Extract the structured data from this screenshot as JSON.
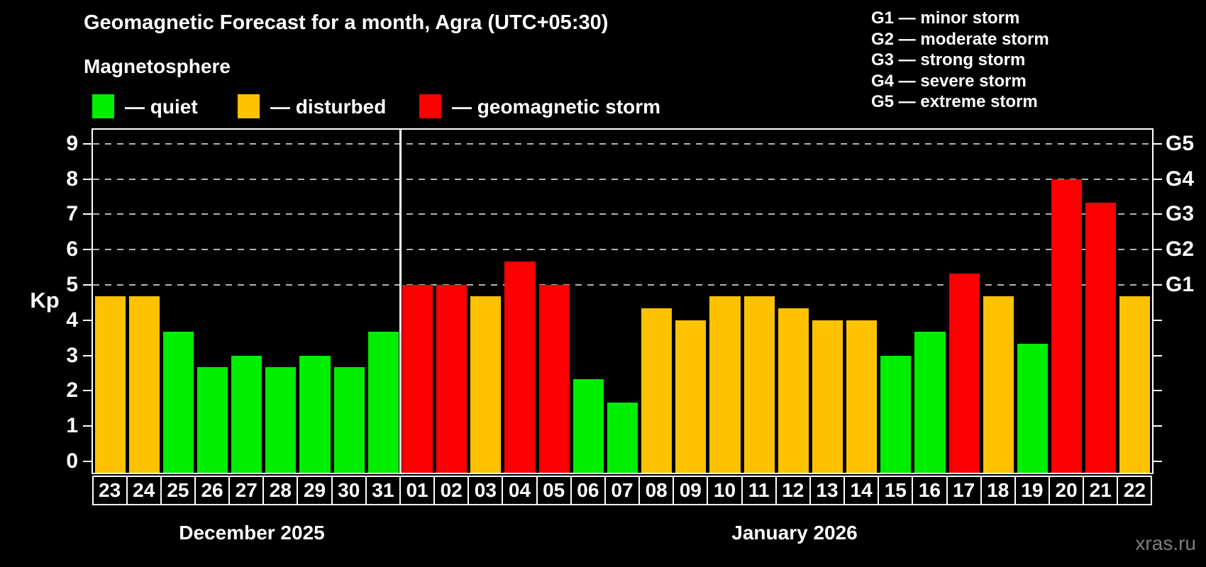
{
  "title": "Geomagnetic Forecast for a month, Agra (UTC+05:30)",
  "subtitle": "Magnetosphere",
  "legend": [
    {
      "key": "quiet",
      "label": "— quiet",
      "color": "#00ee00"
    },
    {
      "key": "disturbed",
      "label": "— disturbed",
      "color": "#ffc200"
    },
    {
      "key": "storm",
      "label": "— geomagnetic storm",
      "color": "#fb0000"
    }
  ],
  "g_legend": [
    "G1 — minor storm",
    "G2 — moderate storm",
    "G3 — strong storm",
    "G4 — severe storm",
    "G5 — extreme storm"
  ],
  "axis": {
    "y_label": "Kp",
    "y_ticks": [
      0,
      1,
      2,
      3,
      4,
      5,
      6,
      7,
      8,
      9
    ],
    "g_labels": [
      {
        "value": 5,
        "label": "G1"
      },
      {
        "value": 6,
        "label": "G2"
      },
      {
        "value": 7,
        "label": "G3"
      },
      {
        "value": 8,
        "label": "G4"
      },
      {
        "value": 9,
        "label": "G5"
      }
    ]
  },
  "months": [
    {
      "label": "December 2025"
    },
    {
      "label": "January 2026"
    }
  ],
  "watermark": "xras.ru",
  "chart_data": {
    "type": "bar",
    "title": "Geomagnetic Forecast for a month, Agra (UTC+05:30)",
    "xlabel": "",
    "ylabel": "Kp",
    "ylim": [
      0,
      9
    ],
    "grid": "dashed horizontal at 5,6,7,8,9 only",
    "legend_position": "top-left",
    "gridline_values": [
      5,
      6,
      7,
      8,
      9
    ],
    "categories": [
      "23",
      "24",
      "25",
      "26",
      "27",
      "28",
      "29",
      "30",
      "31",
      "01",
      "02",
      "03",
      "04",
      "05",
      "06",
      "07",
      "08",
      "09",
      "10",
      "11",
      "12",
      "13",
      "14",
      "15",
      "16",
      "17",
      "18",
      "19",
      "20",
      "21",
      "22"
    ],
    "days": [
      {
        "month": "December 2025",
        "day": "23",
        "kp": 4.67,
        "status": "disturbed"
      },
      {
        "month": "December 2025",
        "day": "24",
        "kp": 4.67,
        "status": "disturbed"
      },
      {
        "month": "December 2025",
        "day": "25",
        "kp": 3.67,
        "status": "quiet"
      },
      {
        "month": "December 2025",
        "day": "26",
        "kp": 2.67,
        "status": "quiet"
      },
      {
        "month": "December 2025",
        "day": "27",
        "kp": 3.0,
        "status": "quiet"
      },
      {
        "month": "December 2025",
        "day": "28",
        "kp": 2.67,
        "status": "quiet"
      },
      {
        "month": "December 2025",
        "day": "29",
        "kp": 3.0,
        "status": "quiet"
      },
      {
        "month": "December 2025",
        "day": "30",
        "kp": 2.67,
        "status": "quiet"
      },
      {
        "month": "December 2025",
        "day": "31",
        "kp": 3.67,
        "status": "quiet"
      },
      {
        "month": "January 2026",
        "day": "01",
        "kp": 5.0,
        "status": "storm"
      },
      {
        "month": "January 2026",
        "day": "02",
        "kp": 5.0,
        "status": "storm"
      },
      {
        "month": "January 2026",
        "day": "03",
        "kp": 4.67,
        "status": "disturbed"
      },
      {
        "month": "January 2026",
        "day": "04",
        "kp": 5.67,
        "status": "storm"
      },
      {
        "month": "January 2026",
        "day": "05",
        "kp": 5.0,
        "status": "storm"
      },
      {
        "month": "January 2026",
        "day": "06",
        "kp": 2.33,
        "status": "quiet"
      },
      {
        "month": "January 2026",
        "day": "07",
        "kp": 1.67,
        "status": "quiet"
      },
      {
        "month": "January 2026",
        "day": "08",
        "kp": 4.33,
        "status": "disturbed"
      },
      {
        "month": "January 2026",
        "day": "09",
        "kp": 4.0,
        "status": "disturbed"
      },
      {
        "month": "January 2026",
        "day": "10",
        "kp": 4.67,
        "status": "disturbed"
      },
      {
        "month": "January 2026",
        "day": "11",
        "kp": 4.67,
        "status": "disturbed"
      },
      {
        "month": "January 2026",
        "day": "12",
        "kp": 4.33,
        "status": "disturbed"
      },
      {
        "month": "January 2026",
        "day": "13",
        "kp": 4.0,
        "status": "disturbed"
      },
      {
        "month": "January 2026",
        "day": "14",
        "kp": 4.0,
        "status": "disturbed"
      },
      {
        "month": "January 2026",
        "day": "15",
        "kp": 3.0,
        "status": "quiet"
      },
      {
        "month": "January 2026",
        "day": "16",
        "kp": 3.67,
        "status": "quiet"
      },
      {
        "month": "January 2026",
        "day": "17",
        "kp": 5.33,
        "status": "storm"
      },
      {
        "month": "January 2026",
        "day": "18",
        "kp": 4.67,
        "status": "disturbed"
      },
      {
        "month": "January 2026",
        "day": "19",
        "kp": 3.33,
        "status": "quiet"
      },
      {
        "month": "January 2026",
        "day": "20",
        "kp": 8.0,
        "status": "storm"
      },
      {
        "month": "January 2026",
        "day": "21",
        "kp": 7.33,
        "status": "storm"
      },
      {
        "month": "January 2026",
        "day": "22",
        "kp": 4.67,
        "status": "disturbed"
      }
    ]
  }
}
